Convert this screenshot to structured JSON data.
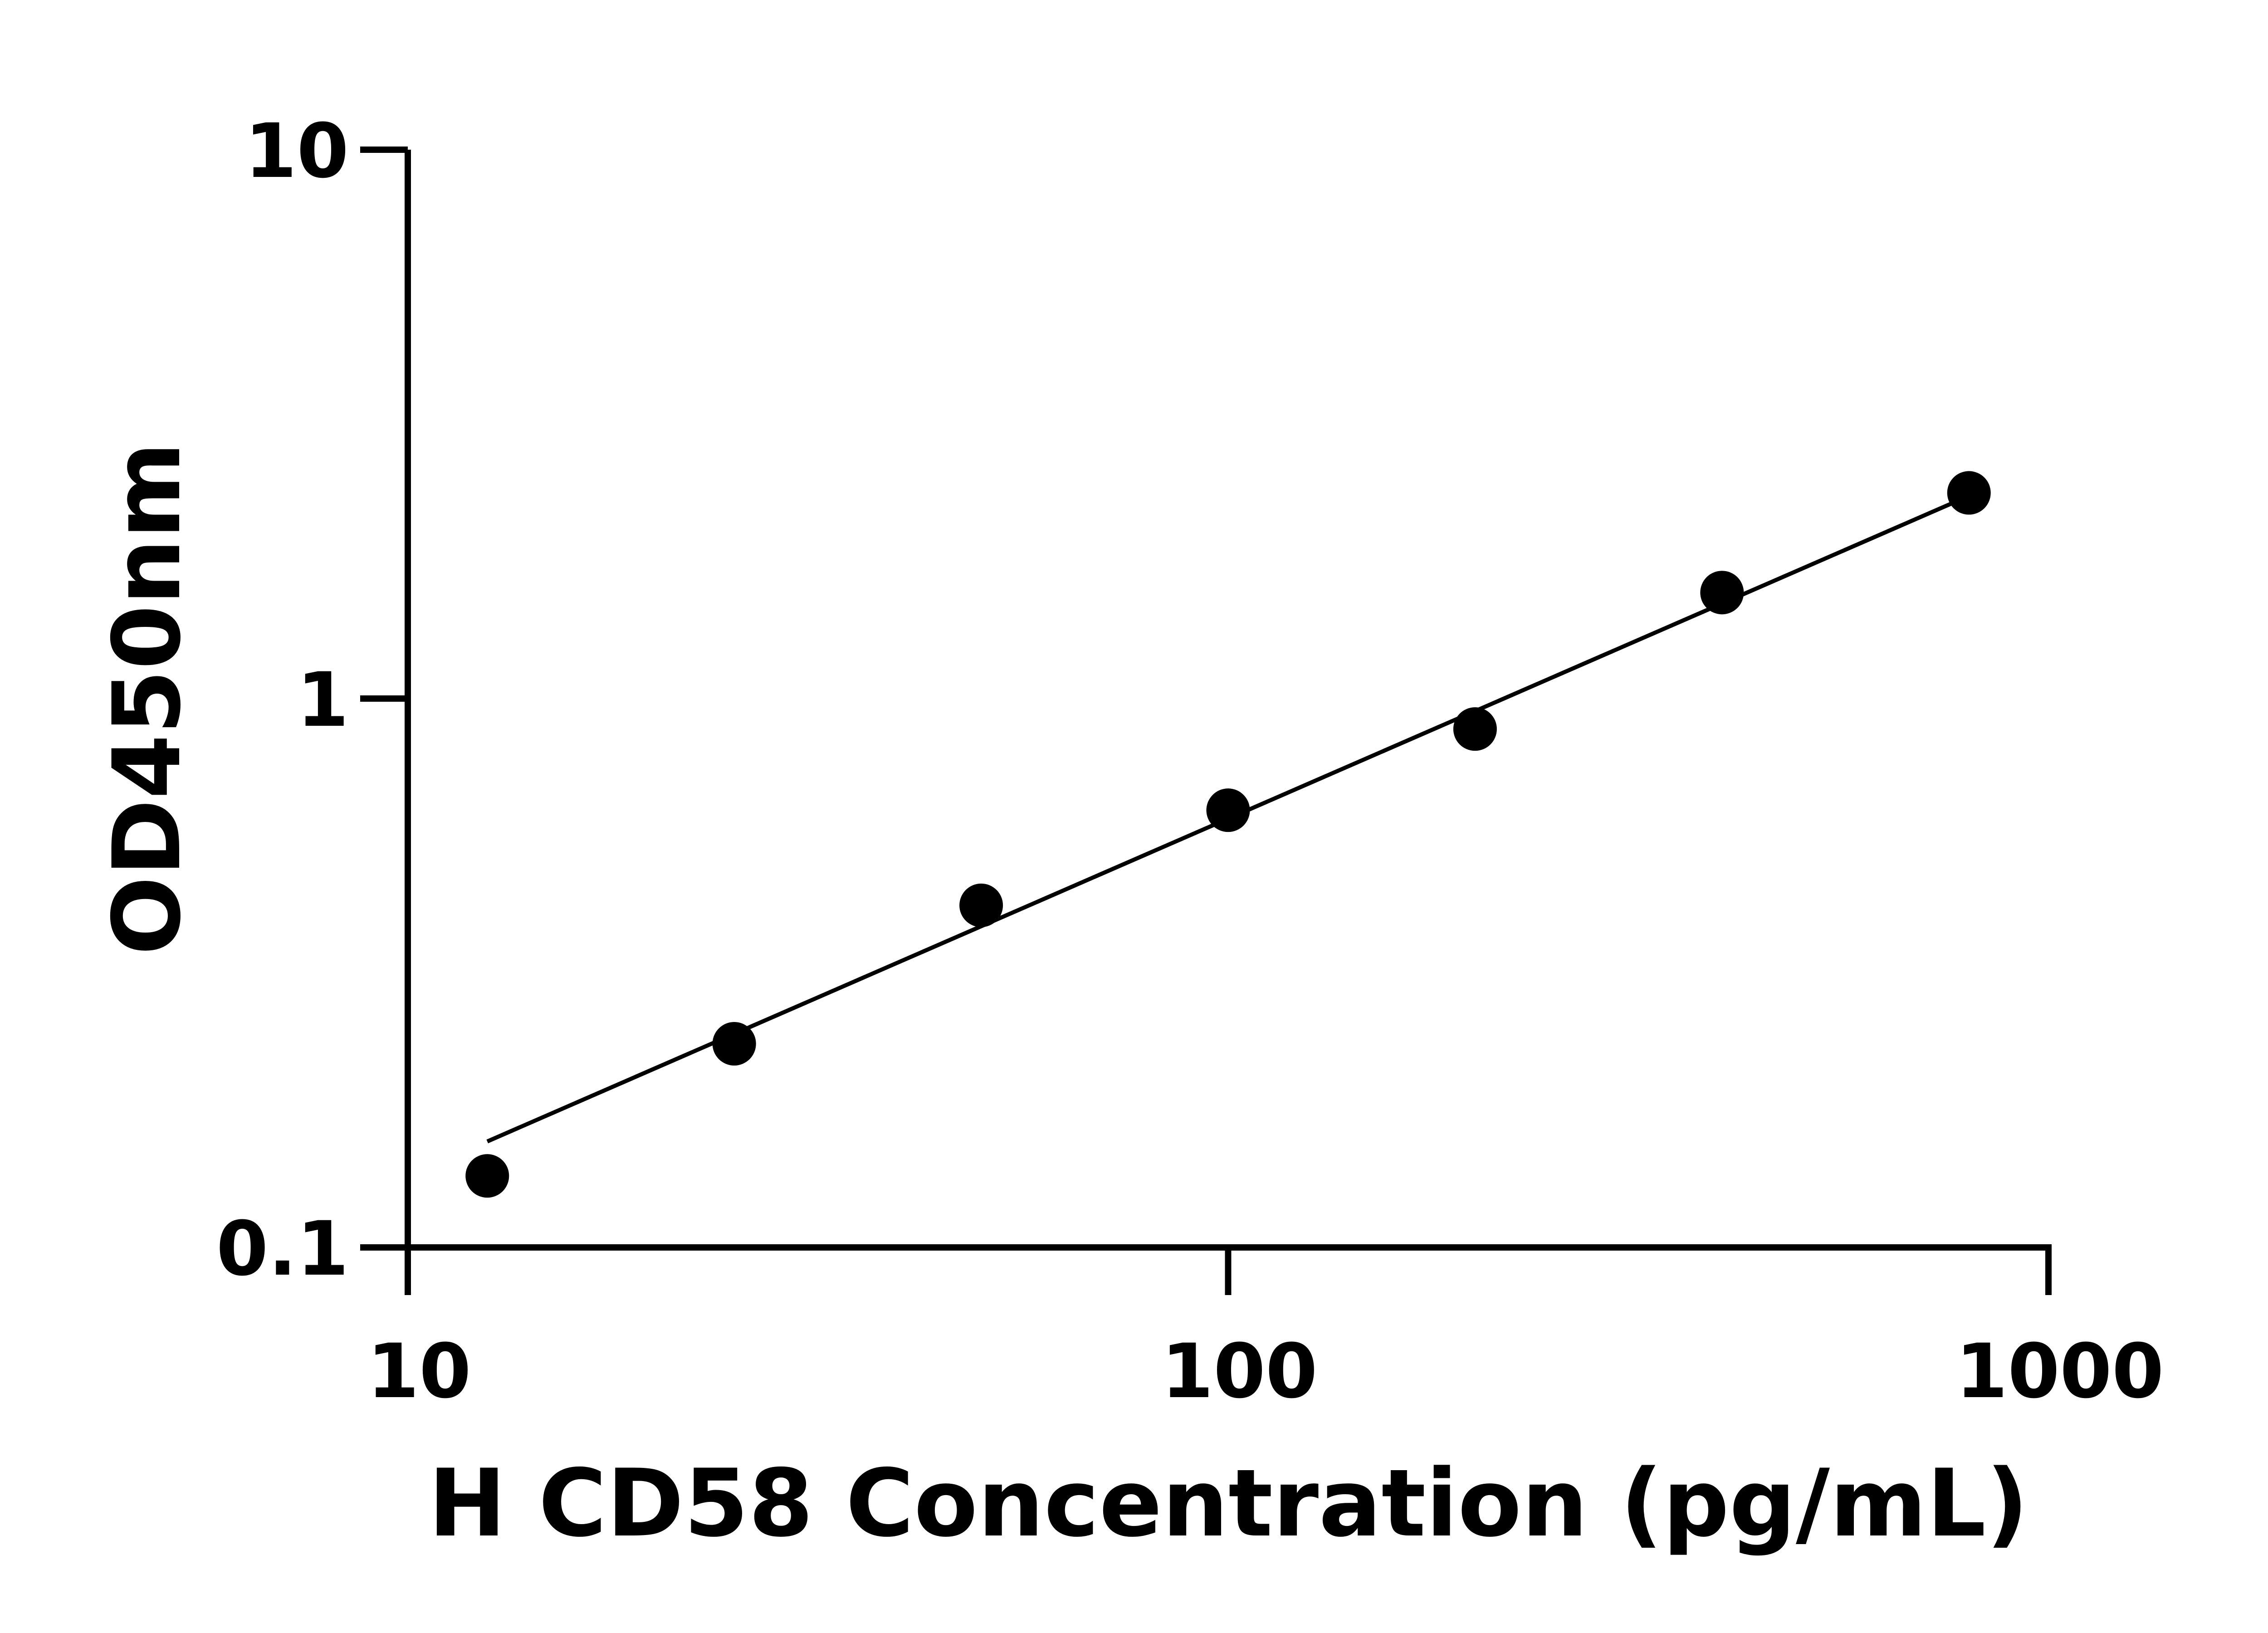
{
  "chart_data": {
    "type": "scatter",
    "title": "",
    "xlabel": "H CD58 Concentration (pg/mL)",
    "ylabel": "OD450nm",
    "x_scale": "log",
    "y_scale": "log",
    "xlim": [
      10,
      1000
    ],
    "ylim": [
      0.1,
      10
    ],
    "x_ticks": [
      {
        "value": 10,
        "label": "10"
      },
      {
        "value": 100,
        "label": "100"
      },
      {
        "value": 1000,
        "label": "1000"
      }
    ],
    "y_ticks": [
      {
        "value": 0.1,
        "label": "0.1"
      },
      {
        "value": 1,
        "label": "1"
      },
      {
        "value": 10,
        "label": "10"
      }
    ],
    "grid": false,
    "points": [
      {
        "x": 12.5,
        "y": 0.135
      },
      {
        "x": 25,
        "y": 0.235
      },
      {
        "x": 50,
        "y": 0.42
      },
      {
        "x": 100,
        "y": 0.626
      },
      {
        "x": 200,
        "y": 0.88
      },
      {
        "x": 400,
        "y": 1.56
      },
      {
        "x": 800,
        "y": 2.37
      }
    ],
    "fit_line": {
      "x": [
        12.5,
        800
      ],
      "y": [
        0.156,
        2.34
      ]
    },
    "color": "#000000"
  }
}
